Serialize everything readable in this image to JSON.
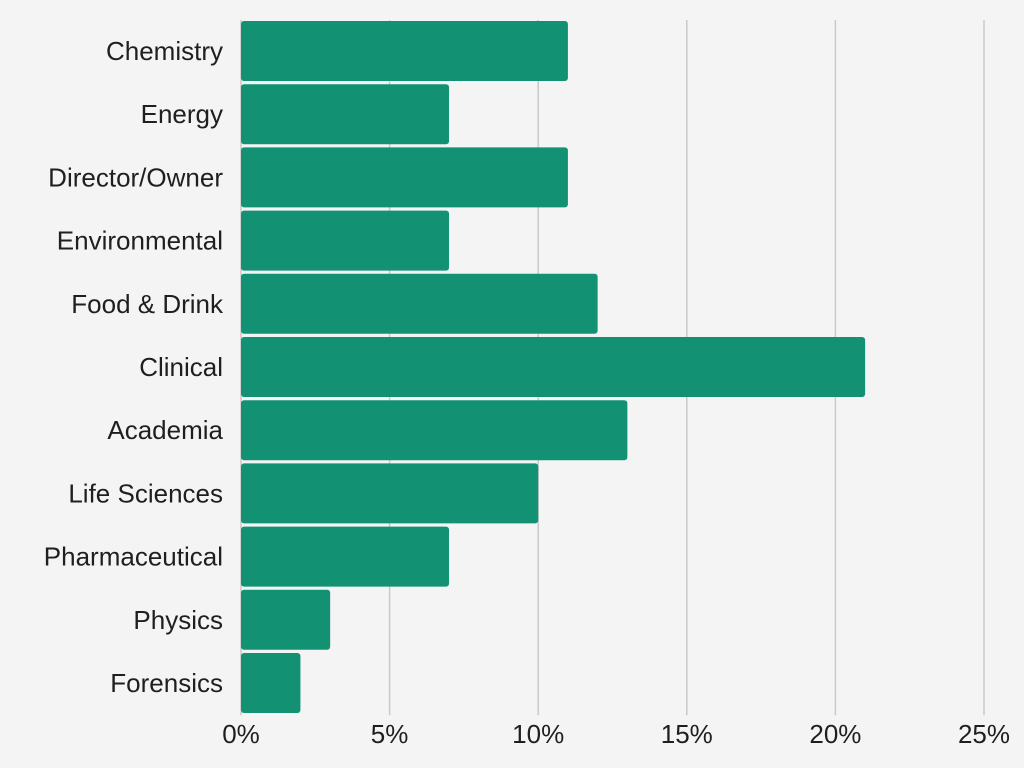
{
  "chart_data": {
    "type": "bar",
    "orientation": "horizontal",
    "categories": [
      "Chemistry",
      "Energy",
      "Director/Owner",
      "Environmental",
      "Food & Drink",
      "Clinical",
      "Academia",
      "Life Sciences",
      "Pharmaceutical",
      "Physics",
      "Forensics"
    ],
    "values": [
      11,
      7,
      11,
      7,
      12,
      21,
      13,
      10,
      7,
      3,
      2
    ],
    "xlim": [
      0,
      25
    ],
    "xticks": [
      0,
      5,
      10,
      15,
      20,
      25
    ],
    "xtick_labels": [
      "0%",
      "5%",
      "10%",
      "15%",
      "20%",
      "25%"
    ],
    "grid": "vertical",
    "title": "",
    "xlabel": "",
    "ylabel": "",
    "colors": {
      "bar": "#139273",
      "grid": "#c9c9c9",
      "background": "#f4f4f4",
      "text": "#1f1f1f"
    }
  }
}
